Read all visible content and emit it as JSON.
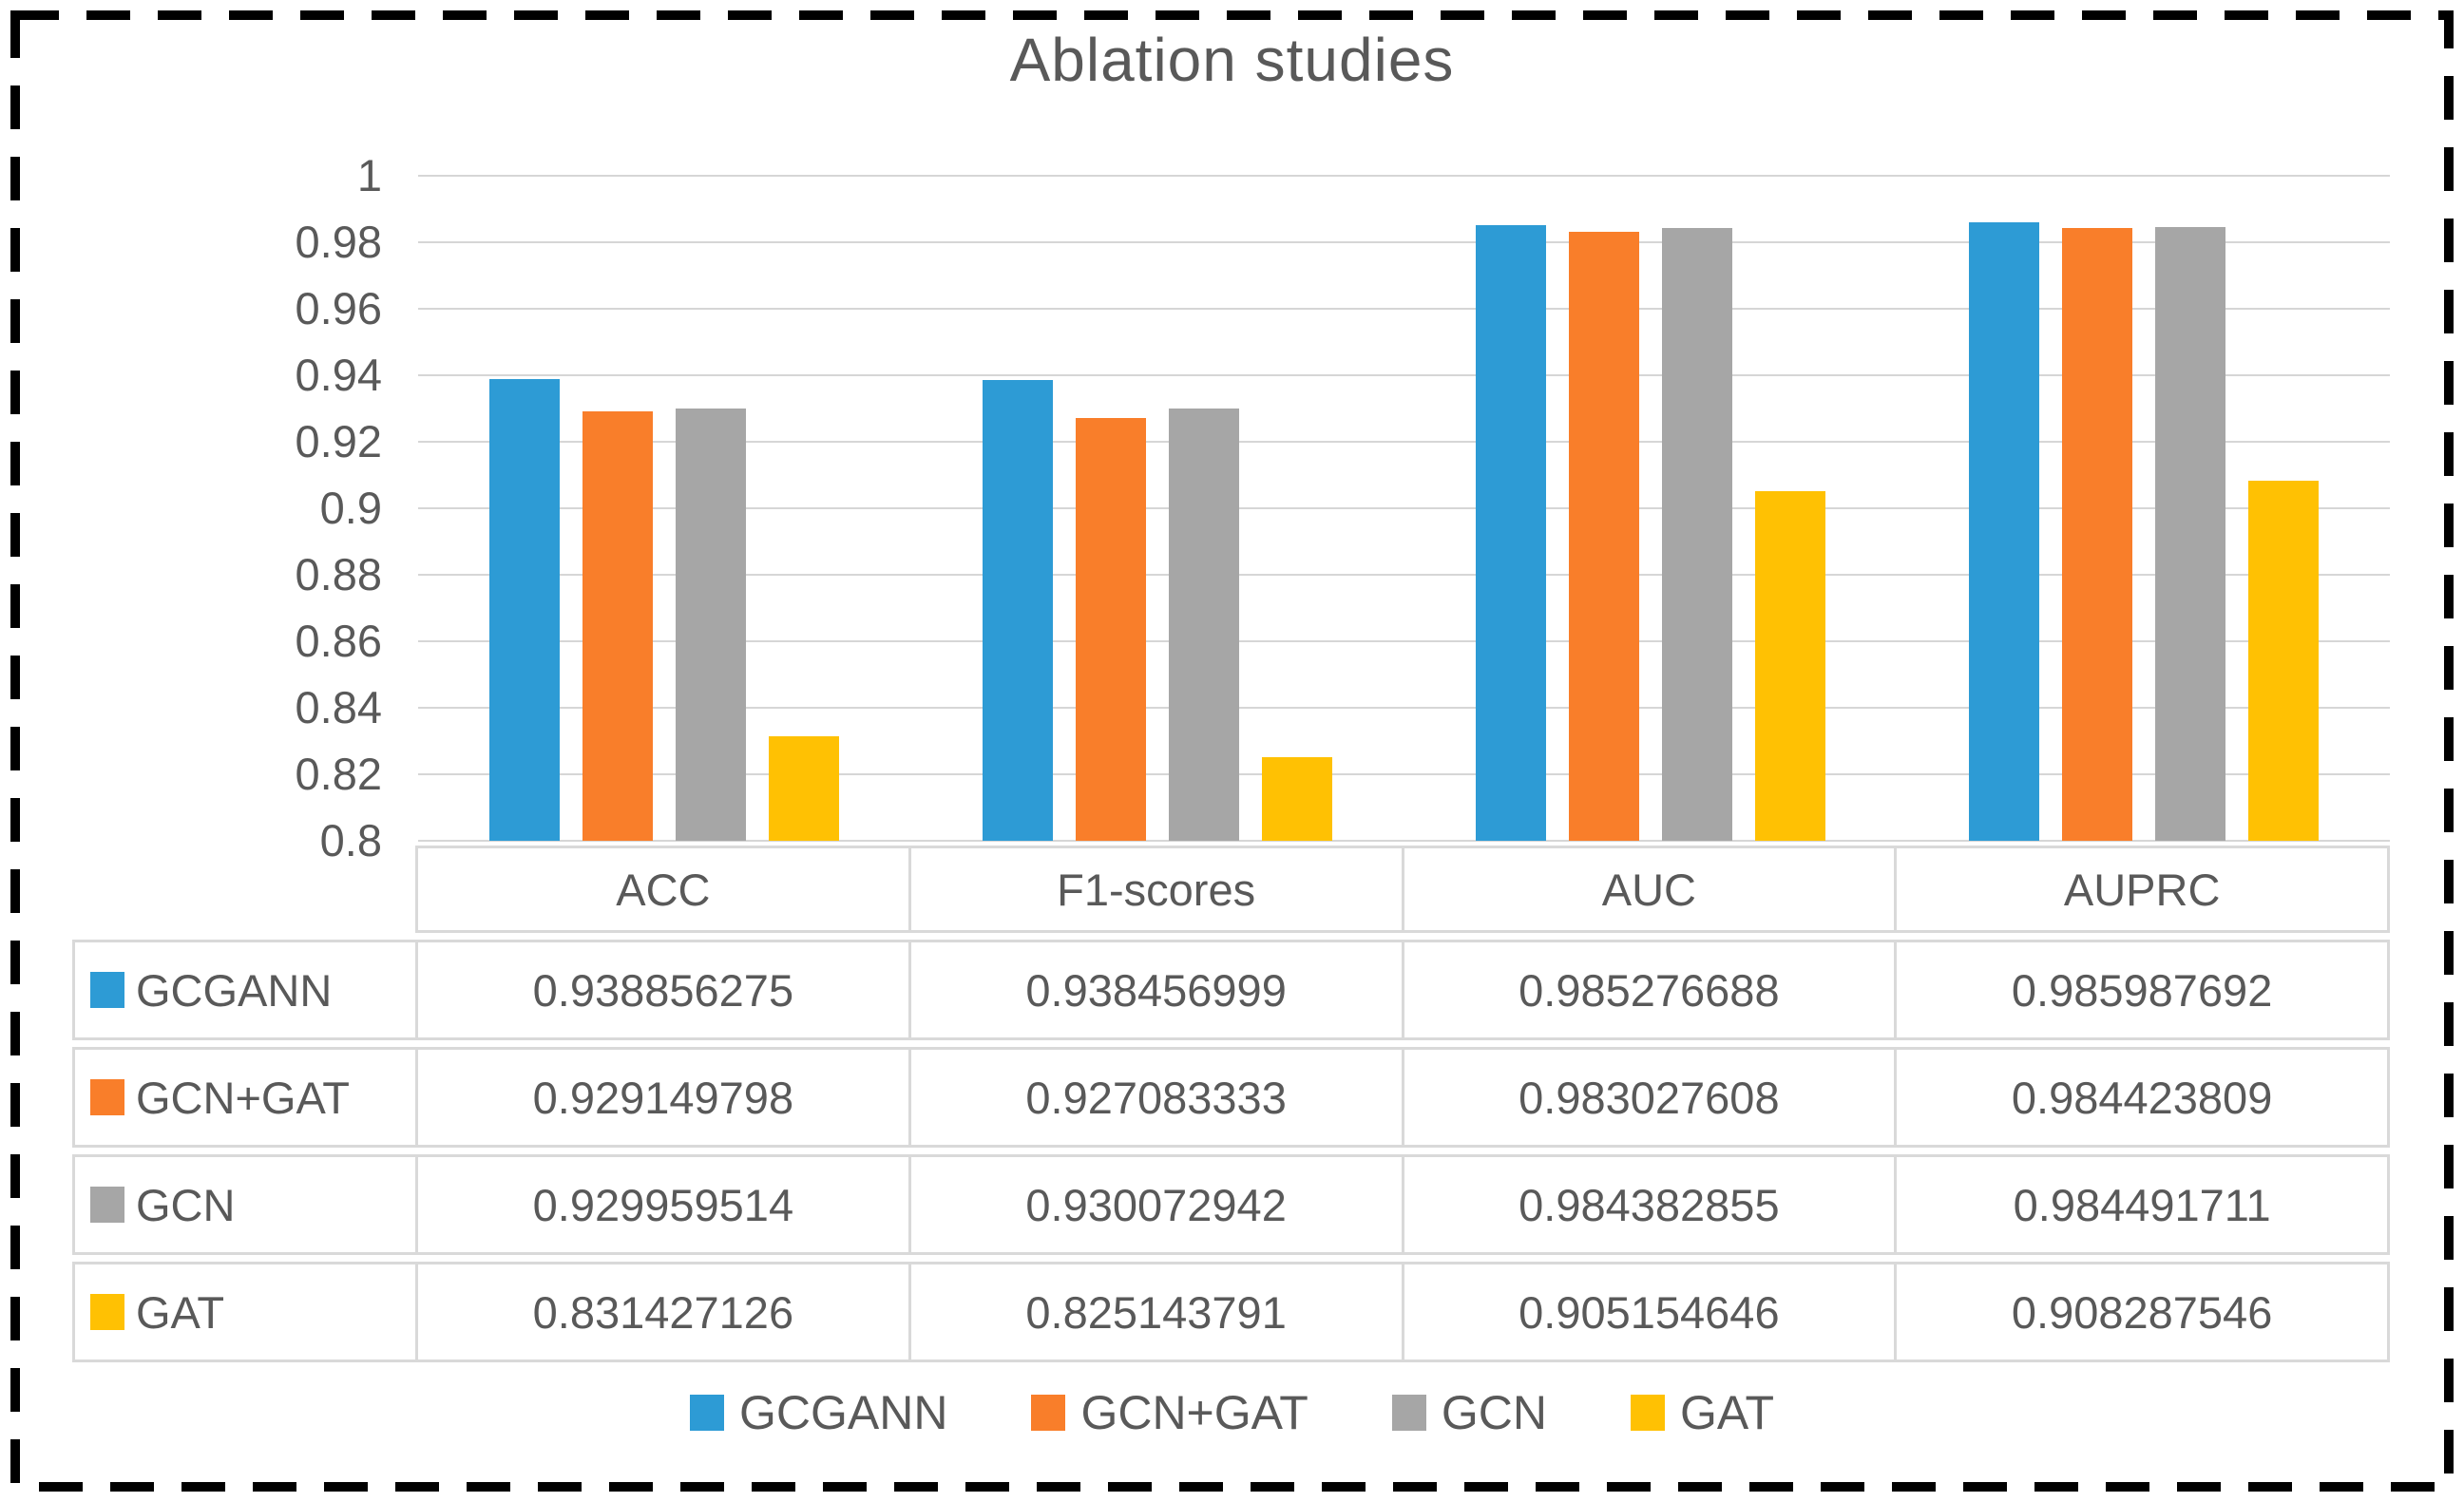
{
  "figure_title": "Ablation studies",
  "colors": {
    "text": "#595959",
    "gridline": "#d6d6d6",
    "table_border": "#d9d9d9",
    "border_dash": "#000000",
    "series_blue": "#2d9bd5",
    "series_orange": "#f97e2a",
    "series_gray": "#a6a6a6",
    "series_yellow": "#ffc103"
  },
  "chart_data": {
    "type": "bar",
    "title": "Ablation studies",
    "categories": [
      "ACC",
      "F1-scores",
      "AUC",
      "AUPRC"
    ],
    "series": [
      {
        "name": "GCGANN",
        "color": "#2d9bd5",
        "values": [
          0.938856275,
          0.938456999,
          0.985276688,
          0.985987692
        ]
      },
      {
        "name": "GCN+GAT",
        "color": "#f97e2a",
        "values": [
          0.929149798,
          0.927083333,
          0.983027608,
          0.984423809
        ]
      },
      {
        "name": "GCN",
        "color": "#a6a6a6",
        "values": [
          0.929959514,
          0.930072942,
          0.984382855,
          0.984491711
        ]
      },
      {
        "name": "GAT",
        "color": "#ffc103",
        "values": [
          0.831427126,
          0.825143791,
          0.905154646,
          0.908287546
        ]
      }
    ],
    "ylim": [
      0.8,
      1.0
    ],
    "ytick_labels": [
      "1",
      "0.98",
      "0.96",
      "0.94",
      "0.92",
      "0.9",
      "0.88",
      "0.86",
      "0.84",
      "0.82",
      "0.8"
    ],
    "grid": true,
    "legend_position": "bottom"
  },
  "table": {
    "column_headers": [
      "ACC",
      "F1-scores",
      "AUC",
      "AUPRC"
    ],
    "rows": [
      {
        "label": "GCGANN",
        "values": [
          "0.938856275",
          "0.938456999",
          "0.985276688",
          "0.985987692"
        ]
      },
      {
        "label": "GCN+GAT",
        "values": [
          "0.929149798",
          "0.927083333",
          "0.983027608",
          "0.984423809"
        ]
      },
      {
        "label": "GCN",
        "values": [
          "0.929959514",
          "0.930072942",
          "0.984382855",
          "0.984491711"
        ]
      },
      {
        "label": "GAT",
        "values": [
          "0.831427126",
          "0.825143791",
          "0.905154646",
          "0.908287546"
        ]
      }
    ]
  },
  "legend": {
    "items": [
      "GCGANN",
      "GCN+GAT",
      "GCN",
      "GAT"
    ]
  }
}
